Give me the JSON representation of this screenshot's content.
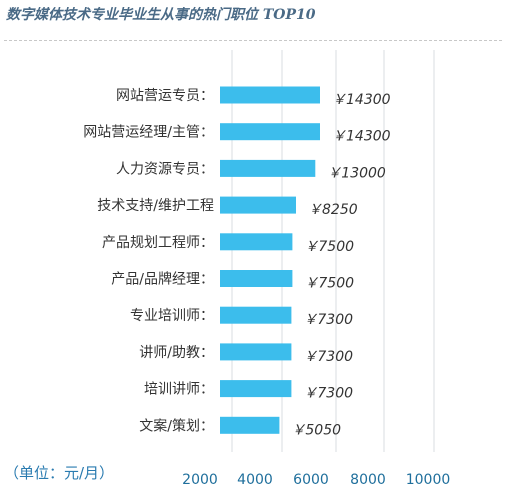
{
  "chart_data": {
    "type": "bar",
    "orientation": "horizontal",
    "title": "数字媒体技术专业毕业生从事的热门职位 TOP10",
    "categories": [
      "网站营运专员：",
      "网站营运经理/主管：",
      "人力资源专员：",
      "技术支持/维护工程",
      "产品规划工程师：",
      "产品/品牌经理：",
      "专业培训师：",
      "讲师/助教：",
      "培训讲师：",
      "文案/策划："
    ],
    "values": [
      14300,
      14300,
      13000,
      8250,
      7500,
      7500,
      7300,
      7300,
      7300,
      5050
    ],
    "value_labels": [
      "￥14300",
      "￥14300",
      "￥13000",
      "￥8250",
      "￥7500",
      "￥7500",
      "￥7300",
      "￥7300",
      "￥7300",
      "￥5050"
    ],
    "xticks": [
      2000,
      4000,
      6000,
      8000,
      10000
    ],
    "xtick_labels": [
      "2000",
      "4000",
      "6000",
      "8000",
      "10000"
    ],
    "xlabel": "（单位：元/月）",
    "ylabel": "",
    "grid": true,
    "legend": "none",
    "bar_color": "#3cbdec",
    "grid_color": "#d9dde2"
  }
}
